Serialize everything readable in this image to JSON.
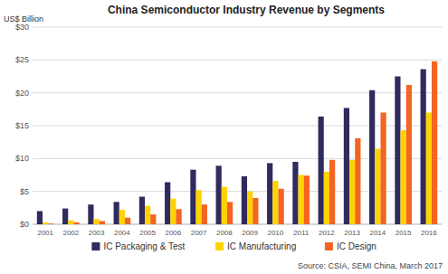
{
  "chart_data": {
    "type": "bar",
    "title": "China Semiconductor Industry Revenue by Segments",
    "y_label": "US$ Billion",
    "source": "Source: CSIA, SEMI China, March 2017",
    "categories": [
      "2001",
      "2002",
      "2003",
      "2004",
      "2005",
      "2006",
      "2007",
      "2008",
      "2009",
      "2010",
      "2011",
      "2012",
      "2013",
      "2014",
      "2015",
      "2016"
    ],
    "series": [
      {
        "name": "IC Packaging & Test",
        "color": "#2f2b5e",
        "values": [
          2.0,
          2.4,
          3.0,
          3.4,
          4.2,
          6.4,
          8.3,
          8.9,
          7.3,
          9.3,
          9.5,
          16.4,
          17.7,
          20.4,
          22.5,
          23.6
        ]
      },
      {
        "name": "IC Manufacturing",
        "color": "#ffd200",
        "values": [
          0.3,
          0.6,
          0.8,
          2.2,
          2.8,
          3.9,
          5.2,
          5.7,
          5.0,
          6.6,
          7.5,
          8.0,
          9.8,
          11.5,
          14.3,
          17.0
        ]
      },
      {
        "name": "IC Design",
        "color": "#f26522",
        "values": [
          0.1,
          0.3,
          0.5,
          1.0,
          1.5,
          2.3,
          3.0,
          3.4,
          4.0,
          5.4,
          7.4,
          9.8,
          13.1,
          17.0,
          21.2,
          24.8
        ]
      }
    ],
    "ylim": [
      0,
      30
    ],
    "yticks": [
      {
        "value": 0,
        "label": "$0"
      },
      {
        "value": 5,
        "label": "$5"
      },
      {
        "value": 10,
        "label": "$10"
      },
      {
        "value": 15,
        "label": "$15"
      },
      {
        "value": 20,
        "label": "$20"
      },
      {
        "value": 25,
        "label": "$25"
      },
      {
        "value": 30,
        "label": "$30"
      }
    ],
    "grid": true,
    "legend": "bottom"
  }
}
